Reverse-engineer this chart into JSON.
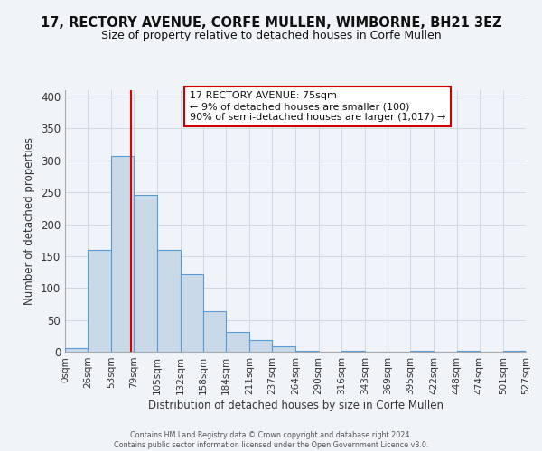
{
  "title": "17, RECTORY AVENUE, CORFE MULLEN, WIMBORNE, BH21 3EZ",
  "subtitle": "Size of property relative to detached houses in Corfe Mullen",
  "xlabel": "Distribution of detached houses by size in Corfe Mullen",
  "ylabel": "Number of detached properties",
  "bin_edges": [
    0,
    26,
    53,
    79,
    105,
    132,
    158,
    184,
    211,
    237,
    264,
    290,
    316,
    343,
    369,
    395,
    422,
    448,
    474,
    501,
    527
  ],
  "bin_counts": [
    5,
    160,
    307,
    246,
    160,
    121,
    64,
    31,
    18,
    9,
    1,
    0,
    1,
    0,
    0,
    1,
    0,
    1,
    0,
    1
  ],
  "bar_color": "#c9d9e8",
  "bar_edge_color": "#5b9bd5",
  "grid_color": "#d0d8e0",
  "bg_color": "#f0f4f8",
  "vline_x": 75,
  "vline_color": "#e00000",
  "annotation_text": "17 RECTORY AVENUE: 75sqm\n← 9% of detached houses are smaller (100)\n90% of semi-detached houses are larger (1,017) →",
  "annotation_box_color": "#ffffff",
  "annotation_box_edge": "#cc0000",
  "ylim": [
    0,
    410
  ],
  "yticks": [
    0,
    50,
    100,
    150,
    200,
    250,
    300,
    350,
    400
  ],
  "tick_labels": [
    "0sqm",
    "26sqm",
    "53sqm",
    "79sqm",
    "105sqm",
    "132sqm",
    "158sqm",
    "184sqm",
    "211sqm",
    "237sqm",
    "264sqm",
    "290sqm",
    "316sqm",
    "343sqm",
    "369sqm",
    "395sqm",
    "422sqm",
    "448sqm",
    "474sqm",
    "501sqm",
    "527sqm"
  ],
  "footer_line1": "Contains HM Land Registry data © Crown copyright and database right 2024.",
  "footer_line2": "Contains public sector information licensed under the Open Government Licence v3.0."
}
